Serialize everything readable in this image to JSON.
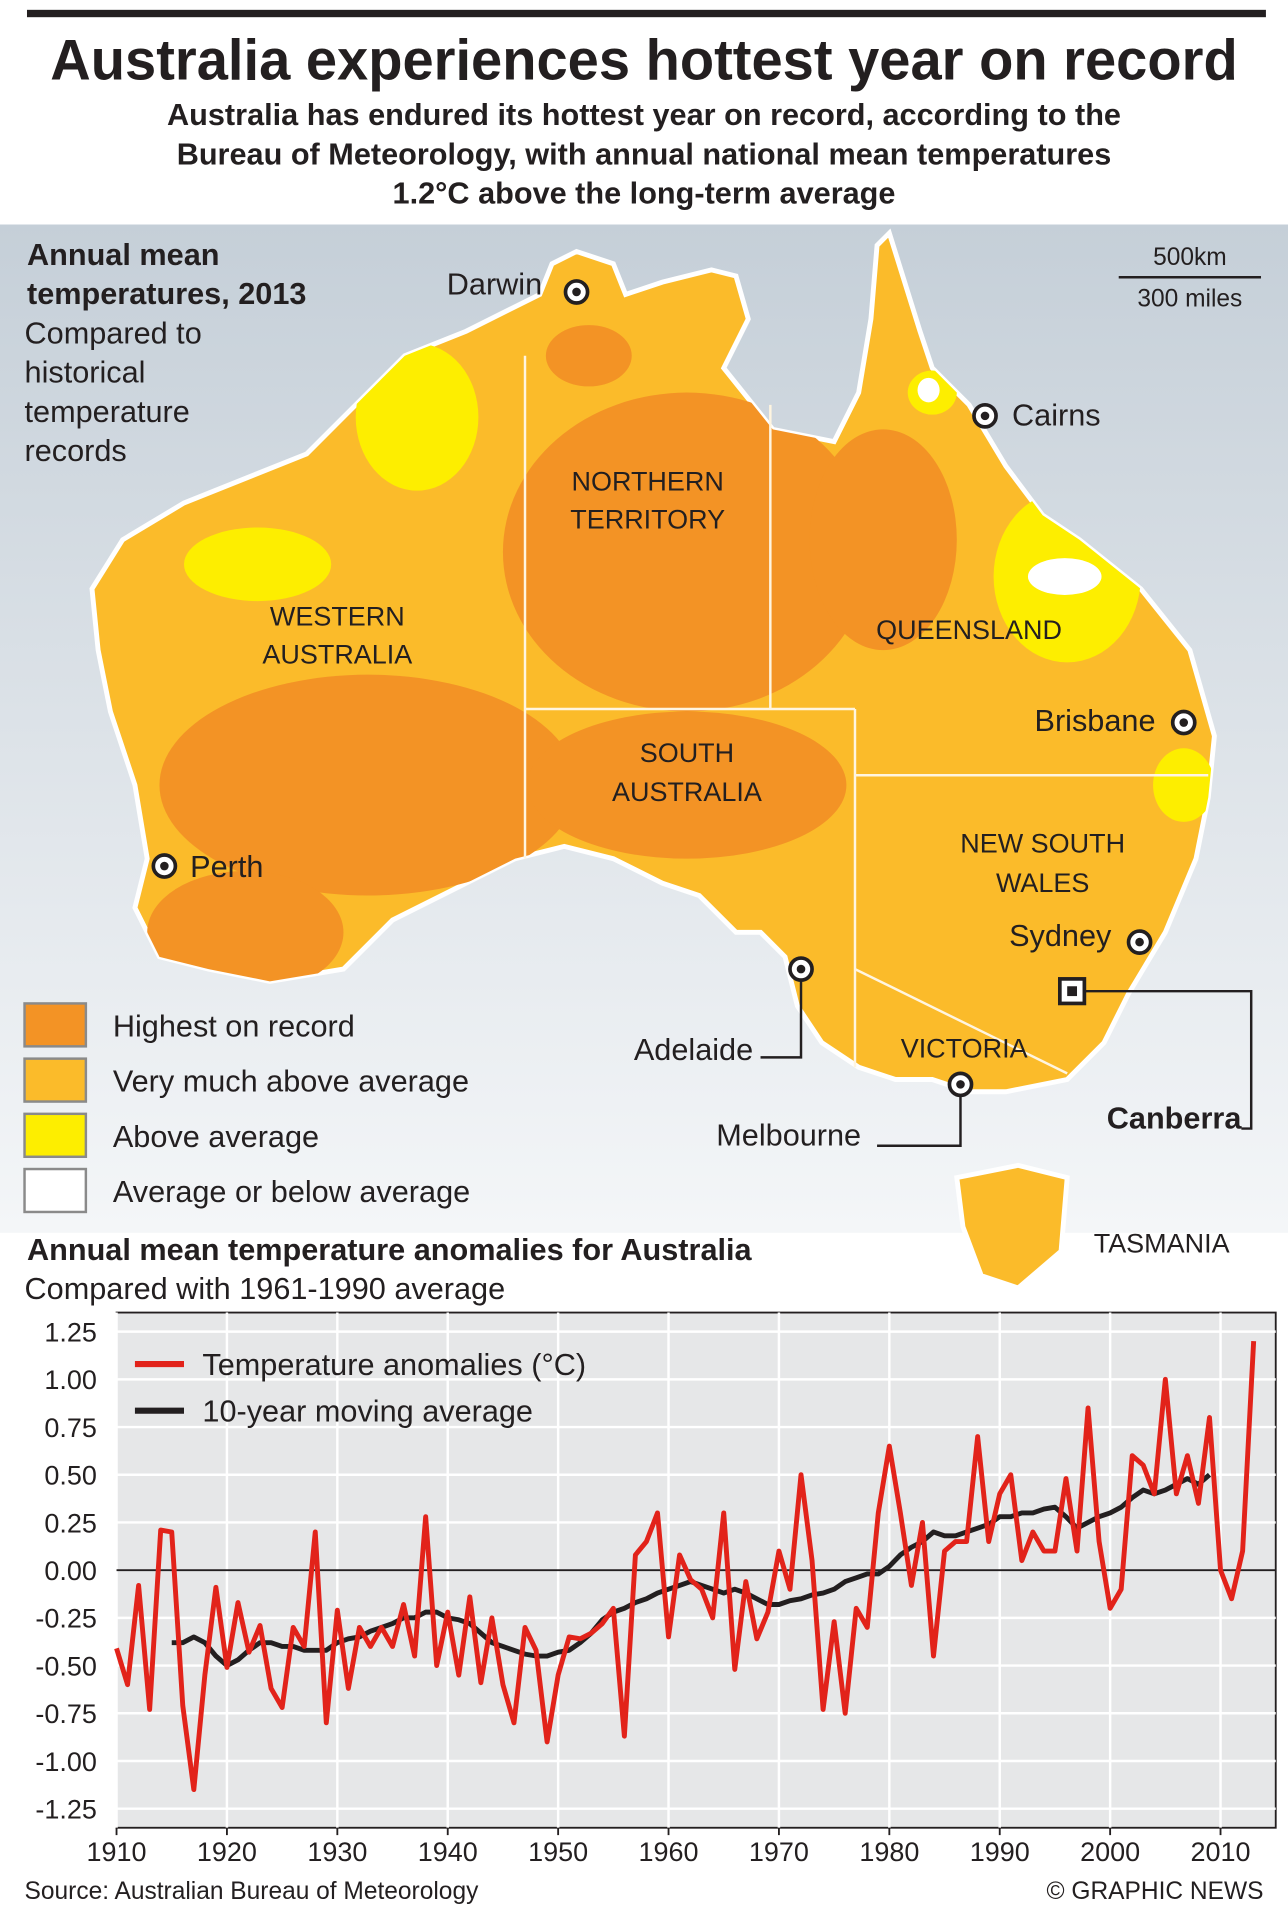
{
  "header": {
    "title": "Australia experiences hottest year on record",
    "subtitle_lines": [
      "Australia has endured its hottest year on record, according to the",
      "Bureau of Meteorology, with annual national mean temperatures",
      "1.2°C above the long-term average"
    ]
  },
  "map": {
    "heading_lines": [
      "Annual mean",
      "temperatures, 2013"
    ],
    "subheading_lines": [
      "Compared to",
      "historical",
      "temperature",
      "records"
    ],
    "scale": {
      "km": "500km",
      "miles": "300 miles"
    },
    "regions": [
      {
        "lines": [
          "WESTERN",
          "AUSTRALIA"
        ]
      },
      {
        "lines": [
          "NORTHERN",
          "TERRITORY"
        ]
      },
      {
        "lines": [
          "QUEENSLAND"
        ]
      },
      {
        "lines": [
          "SOUTH",
          "AUSTRALIA"
        ]
      },
      {
        "lines": [
          "NEW SOUTH",
          "WALES"
        ]
      },
      {
        "lines": [
          "VICTORIA"
        ]
      },
      {
        "lines": [
          "TASMANIA"
        ]
      }
    ],
    "cities": [
      "Darwin",
      "Cairns",
      "Brisbane",
      "Sydney",
      "Canberra",
      "Melbourne",
      "Adelaide",
      "Perth"
    ],
    "legend": [
      {
        "label": "Highest on record",
        "color": "#f39325"
      },
      {
        "label": "Very much above average",
        "color": "#fbbb2a"
      },
      {
        "label": "Above average",
        "color": "#fdee00"
      },
      {
        "label": "Average or below average",
        "color": "#ffffff"
      }
    ]
  },
  "chart_data": {
    "type": "line",
    "title": "Annual mean temperature anomalies for Australia",
    "subtitle": "Compared with 1961-1990 average",
    "x": [
      1910,
      1911,
      1912,
      1913,
      1914,
      1915,
      1916,
      1917,
      1918,
      1919,
      1920,
      1921,
      1922,
      1923,
      1924,
      1925,
      1926,
      1927,
      1928,
      1929,
      1930,
      1931,
      1932,
      1933,
      1934,
      1935,
      1936,
      1937,
      1938,
      1939,
      1940,
      1941,
      1942,
      1943,
      1944,
      1945,
      1946,
      1947,
      1948,
      1949,
      1950,
      1951,
      1952,
      1953,
      1954,
      1955,
      1956,
      1957,
      1958,
      1959,
      1960,
      1961,
      1962,
      1963,
      1964,
      1965,
      1966,
      1967,
      1968,
      1969,
      1970,
      1971,
      1972,
      1973,
      1974,
      1975,
      1976,
      1977,
      1978,
      1979,
      1980,
      1981,
      1982,
      1983,
      1984,
      1985,
      1986,
      1987,
      1988,
      1989,
      1990,
      1991,
      1992,
      1993,
      1994,
      1995,
      1996,
      1997,
      1998,
      1999,
      2000,
      2001,
      2002,
      2003,
      2004,
      2005,
      2006,
      2007,
      2008,
      2009,
      2010,
      2011,
      2012,
      2013
    ],
    "series": [
      {
        "name": "Temperature anomalies (°C)",
        "color": "#e2231a",
        "values": [
          -0.41,
          -0.6,
          -0.08,
          -0.73,
          0.21,
          0.2,
          -0.71,
          -1.15,
          -0.55,
          -0.09,
          -0.51,
          -0.17,
          -0.43,
          -0.29,
          -0.62,
          -0.72,
          -0.3,
          -0.4,
          0.2,
          -0.8,
          -0.21,
          -0.62,
          -0.3,
          -0.4,
          -0.3,
          -0.4,
          -0.18,
          -0.45,
          0.28,
          -0.5,
          -0.22,
          -0.55,
          -0.14,
          -0.59,
          -0.25,
          -0.6,
          -0.8,
          -0.3,
          -0.42,
          -0.9,
          -0.55,
          -0.35,
          -0.36,
          -0.33,
          -0.28,
          -0.2,
          -0.87,
          0.08,
          0.15,
          0.3,
          -0.35,
          0.08,
          -0.05,
          -0.1,
          -0.25,
          0.3,
          -0.52,
          -0.06,
          -0.36,
          -0.22,
          0.1,
          -0.1,
          0.5,
          0.05,
          -0.73,
          -0.27,
          -0.75,
          -0.2,
          -0.3,
          0.3,
          0.65,
          0.3,
          -0.08,
          0.25,
          -0.45,
          0.1,
          0.15,
          0.15,
          0.7,
          0.15,
          0.4,
          0.5,
          0.05,
          0.2,
          0.1,
          0.1,
          0.48,
          0.1,
          0.85,
          0.15,
          -0.2,
          -0.1,
          0.6,
          0.55,
          0.4,
          1.0,
          0.4,
          0.6,
          0.35,
          0.8,
          0.0,
          -0.15,
          0.1,
          1.2
        ]
      },
      {
        "name": "10-year moving average",
        "color": "#231f20",
        "values": [
          null,
          null,
          null,
          null,
          null,
          -0.38,
          -0.38,
          -0.35,
          -0.38,
          -0.45,
          -0.5,
          -0.47,
          -0.42,
          -0.38,
          -0.38,
          -0.4,
          -0.4,
          -0.42,
          -0.42,
          -0.42,
          -0.38,
          -0.36,
          -0.35,
          -0.32,
          -0.3,
          -0.28,
          -0.25,
          -0.25,
          -0.22,
          -0.22,
          -0.25,
          -0.26,
          -0.28,
          -0.33,
          -0.38,
          -0.4,
          -0.42,
          -0.44,
          -0.45,
          -0.45,
          -0.43,
          -0.42,
          -0.38,
          -0.33,
          -0.26,
          -0.22,
          -0.2,
          -0.17,
          -0.15,
          -0.12,
          -0.1,
          -0.08,
          -0.06,
          -0.08,
          -0.1,
          -0.12,
          -0.1,
          -0.12,
          -0.15,
          -0.18,
          -0.18,
          -0.16,
          -0.15,
          -0.13,
          -0.12,
          -0.1,
          -0.06,
          -0.04,
          -0.02,
          -0.02,
          0.02,
          0.08,
          0.12,
          0.15,
          0.2,
          0.18,
          0.18,
          0.2,
          0.22,
          0.24,
          0.28,
          0.28,
          0.3,
          0.3,
          0.32,
          0.33,
          0.28,
          0.22,
          0.25,
          0.28,
          0.3,
          0.33,
          0.38,
          0.42,
          0.4,
          0.42,
          0.45,
          0.48,
          0.45,
          0.5,
          null,
          null,
          null,
          null
        ]
      }
    ],
    "xlim": [
      1910,
      2015
    ],
    "xticks": [
      1910,
      1920,
      1930,
      1940,
      1950,
      1960,
      1970,
      1980,
      1990,
      2000,
      2010
    ],
    "ylim": [
      -1.35,
      1.35
    ],
    "yticks": [
      1.25,
      {
        "value": 1,
        "label": "1.00"
      },
      0.75,
      {
        "value": 0.5,
        "label": "0.50"
      },
      0.25,
      {
        "value": 0,
        "label": "0.00"
      },
      -0.25,
      {
        "value": -0.5,
        "label": "-0.50"
      },
      -0.75,
      {
        "value": -1,
        "label": "-1.00"
      },
      -1.25
    ],
    "grid": true
  },
  "footer": {
    "source": "Source: Australian Bureau of Meteorology",
    "credit": "© GRAPHIC NEWS"
  }
}
